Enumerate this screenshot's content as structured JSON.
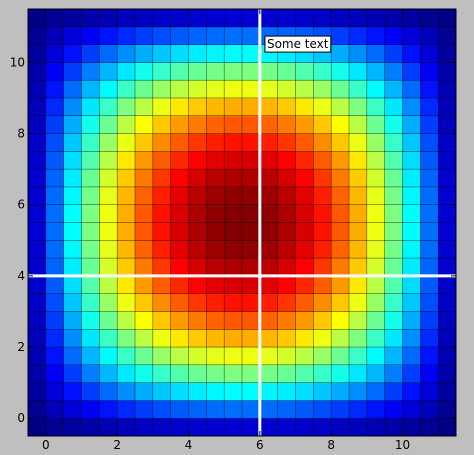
{
  "chart_data": {
    "type": "heatmap",
    "title": "",
    "xlabel": "",
    "ylabel": "",
    "colormap": "jet",
    "x_extent": [
      -0.5,
      11.5
    ],
    "y_extent": [
      -0.5,
      11.5
    ],
    "grid_cells": 24,
    "grid": true,
    "xticks": [
      0,
      2,
      4,
      6,
      8,
      10
    ],
    "yticks": [
      0,
      2,
      4,
      6,
      8,
      10
    ],
    "xtick_labels": [
      "0",
      "2",
      "4",
      "6",
      "8",
      "10"
    ],
    "ytick_labels": [
      "0",
      "2",
      "4",
      "6",
      "8",
      "10"
    ],
    "peak": [
      5.5,
      5.5
    ],
    "crosshair": {
      "x": 6,
      "y": 4,
      "color": "#ffffff"
    },
    "annotation": {
      "text": "Some text",
      "x": 6.2,
      "y": 10.5
    }
  }
}
